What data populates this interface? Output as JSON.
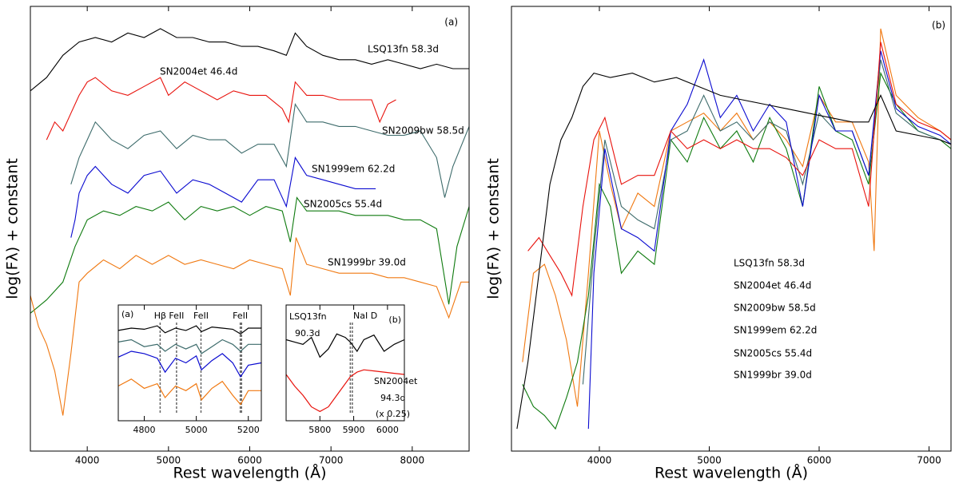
{
  "chart_data": [
    {
      "type": "line",
      "panel_label": "(a)",
      "xlabel": "Rest wavelength (Å)",
      "ylabel": "log(Fλ) + constant",
      "xlim": [
        3300,
        8700
      ],
      "xticks": [
        4000,
        5000,
        6000,
        7000,
        8000
      ],
      "ylim": [
        0,
        100
      ],
      "series": [
        {
          "name": "LSQ13fn 58.3d",
          "color": "#000000",
          "x": [
            3300,
            3500,
            3700,
            3900,
            4100,
            4300,
            4500,
            4700,
            4900,
            5100,
            5300,
            5500,
            5700,
            5900,
            6100,
            6300,
            6450,
            6560,
            6700,
            6900,
            7100,
            7300,
            7500,
            7700,
            7900,
            8100,
            8300,
            8500,
            8700
          ],
          "values": [
            81,
            84,
            89,
            92,
            93,
            92,
            94,
            93,
            95,
            93,
            93,
            92,
            92,
            91,
            91,
            90,
            89,
            94,
            91,
            89,
            88,
            88,
            87,
            88,
            87,
            86,
            87,
            86,
            86
          ]
        },
        {
          "name": "SN2004et 46.4d",
          "color": "#e8120c",
          "x": [
            3500,
            3600,
            3700,
            3800,
            3900,
            4000,
            4100,
            4300,
            4500,
            4700,
            4900,
            5000,
            5200,
            5400,
            5600,
            5800,
            6000,
            6200,
            6400,
            6480,
            6560,
            6700,
            6900,
            7100,
            7300,
            7500,
            7600,
            7700,
            7800
          ],
          "values": [
            70,
            74,
            72,
            76,
            80,
            83,
            84,
            81,
            80,
            82,
            84,
            80,
            83,
            81,
            79,
            81,
            80,
            80,
            77,
            74,
            83,
            80,
            80,
            79,
            79,
            79,
            74,
            78,
            79
          ]
        },
        {
          "name": "SN2009bw 58.5d",
          "color": "#3d6b6b",
          "x": [
            3800,
            3900,
            4000,
            4100,
            4300,
            4500,
            4700,
            4900,
            5100,
            5300,
            5500,
            5700,
            5900,
            6100,
            6300,
            6450,
            6560,
            6700,
            6900,
            7100,
            7300,
            7500,
            7700,
            7900,
            8100,
            8300,
            8400,
            8500,
            8700
          ],
          "values": [
            60,
            66,
            70,
            74,
            70,
            68,
            71,
            72,
            68,
            71,
            70,
            70,
            67,
            69,
            69,
            64,
            78,
            74,
            74,
            73,
            73,
            72,
            71,
            71,
            72,
            66,
            57,
            64,
            73
          ]
        },
        {
          "name": "SN1999em 62.2d",
          "color": "#0a0ad0",
          "x": [
            3800,
            3850,
            3900,
            4000,
            4100,
            4300,
            4500,
            4700,
            4900,
            5100,
            5300,
            5500,
            5700,
            5900,
            6100,
            6300,
            6450,
            6560,
            6700,
            6900,
            7100,
            7300,
            7550
          ],
          "values": [
            48,
            52,
            58,
            62,
            64,
            60,
            58,
            62,
            63,
            58,
            61,
            60,
            58,
            56,
            61,
            61,
            55,
            66,
            62,
            61,
            60,
            59,
            59
          ]
        },
        {
          "name": "SN2005cs 55.4d",
          "color": "#0e7a0e",
          "x": [
            3300,
            3500,
            3700,
            3850,
            4000,
            4200,
            4400,
            4600,
            4800,
            5000,
            5200,
            5400,
            5600,
            5800,
            6000,
            6200,
            6400,
            6500,
            6580,
            6700,
            6900,
            7100,
            7300,
            7500,
            7700,
            7900,
            8100,
            8300,
            8450,
            8550,
            8700
          ],
          "values": [
            31,
            34,
            38,
            46,
            52,
            54,
            53,
            55,
            54,
            56,
            52,
            55,
            54,
            55,
            53,
            55,
            54,
            47,
            57,
            54,
            54,
            54,
            53,
            53,
            53,
            52,
            52,
            50,
            33,
            46,
            55
          ]
        },
        {
          "name": "SN1999br 39.0d",
          "color": "#f07810",
          "x": [
            3300,
            3400,
            3500,
            3600,
            3700,
            3800,
            3900,
            4000,
            4200,
            4400,
            4600,
            4800,
            5000,
            5200,
            5400,
            5600,
            5800,
            6000,
            6200,
            6400,
            6500,
            6570,
            6700,
            6900,
            7100,
            7300,
            7500,
            7700,
            7900,
            8100,
            8300,
            8450,
            8600,
            8700
          ],
          "values": [
            35,
            28,
            24,
            18,
            8,
            22,
            38,
            40,
            43,
            41,
            44,
            42,
            44,
            42,
            43,
            42,
            41,
            43,
            42,
            41,
            35,
            48,
            42,
            41,
            40,
            40,
            40,
            39,
            39,
            38,
            37,
            30,
            38,
            38
          ]
        }
      ]
    },
    {
      "type": "line",
      "panel_label": "(a)",
      "xlim": [
        4700,
        5250
      ],
      "xticks": [
        4800,
        5000,
        5200
      ],
      "ylim": [
        0,
        100
      ],
      "vlines": [
        4861,
        4924,
        5018,
        5169,
        5174
      ],
      "annotations": [
        {
          "text": "Hβ",
          "x": 4861
        },
        {
          "text": "FeII",
          "x": 4924
        },
        {
          "text": "FeII",
          "x": 5018
        },
        {
          "text": "FeII",
          "x": 5169
        }
      ],
      "series": [
        {
          "color": "#000000",
          "x": [
            4700,
            4750,
            4800,
            4850,
            4880,
            4920,
            4960,
            5000,
            5020,
            5060,
            5100,
            5140,
            5170,
            5200,
            5250
          ],
          "values": [
            78,
            80,
            79,
            82,
            76,
            80,
            78,
            82,
            77,
            81,
            80,
            79,
            75,
            80,
            80
          ]
        },
        {
          "color": "#3d6b6b",
          "x": [
            4700,
            4750,
            4800,
            4850,
            4880,
            4920,
            4960,
            5000,
            5020,
            5060,
            5100,
            5140,
            5170,
            5200,
            5250
          ],
          "values": [
            68,
            70,
            64,
            66,
            60,
            66,
            62,
            66,
            58,
            64,
            70,
            66,
            60,
            66,
            66
          ]
        },
        {
          "color": "#0a0ad0",
          "x": [
            4700,
            4750,
            4800,
            4850,
            4880,
            4920,
            4960,
            5000,
            5020,
            5060,
            5100,
            5140,
            5170,
            5200,
            5250
          ],
          "values": [
            55,
            60,
            58,
            54,
            42,
            54,
            50,
            56,
            44,
            52,
            58,
            50,
            38,
            48,
            50
          ]
        },
        {
          "color": "#f07810",
          "x": [
            4700,
            4750,
            4800,
            4850,
            4880,
            4920,
            4960,
            5000,
            5020,
            5060,
            5100,
            5140,
            5170,
            5200,
            5250
          ],
          "values": [
            30,
            36,
            28,
            32,
            20,
            30,
            26,
            32,
            18,
            28,
            34,
            22,
            14,
            26,
            26
          ]
        }
      ]
    },
    {
      "type": "line",
      "panel_label": "(b)",
      "xlim": [
        5700,
        6050
      ],
      "xticks": [
        5800,
        5900,
        6000
      ],
      "ylim": [
        0,
        100
      ],
      "vlines": [
        5890,
        5896
      ],
      "annotations": [
        {
          "text": "90.3d",
          "color": "#000000"
        },
        {
          "text": "NaI D",
          "color": "#000000"
        },
        {
          "text": "94.3d",
          "color": "#e8120c"
        },
        {
          "text": "(x 0.25)",
          "color": "#e8120c"
        }
      ],
      "series": [
        {
          "name": "LSQ13fn",
          "color": "#000000",
          "x": [
            5700,
            5725,
            5750,
            5775,
            5800,
            5825,
            5850,
            5875,
            5890,
            5910,
            5930,
            5960,
            5990,
            6020,
            6050
          ],
          "values": [
            70,
            68,
            66,
            72,
            55,
            62,
            75,
            72,
            68,
            60,
            70,
            74,
            60,
            66,
            70
          ]
        },
        {
          "name": "SN2004et",
          "color": "#e8120c",
          "x": [
            5700,
            5725,
            5750,
            5775,
            5800,
            5825,
            5850,
            5875,
            5890,
            5910,
            5930,
            5960,
            5990,
            6020,
            6050
          ],
          "values": [
            40,
            30,
            22,
            12,
            8,
            12,
            22,
            32,
            38,
            42,
            44,
            43,
            42,
            41,
            40
          ]
        }
      ]
    },
    {
      "type": "line",
      "panel_label": "(b)",
      "xlabel": "Rest wavelength (Å)",
      "ylabel": "log(Fλ) + constant",
      "xlim": [
        3200,
        7200
      ],
      "xticks": [
        4000,
        5000,
        6000,
        7000
      ],
      "ylim": [
        0,
        100
      ],
      "series": [
        {
          "name": "SN1999br 39.0d",
          "color": "#f07810",
          "x": [
            3300,
            3400,
            3500,
            3600,
            3700,
            3800,
            3900,
            4000,
            4100,
            4200,
            4350,
            4500,
            4650,
            4800,
            4950,
            5100,
            5250,
            5400,
            5550,
            5700,
            5850,
            6000,
            6150,
            6300,
            6450,
            6500,
            6560,
            6700,
            6900,
            7100,
            7200
          ],
          "values": [
            20,
            40,
            42,
            35,
            25,
            10,
            40,
            72,
            60,
            50,
            58,
            55,
            72,
            74,
            76,
            72,
            76,
            70,
            74,
            70,
            64,
            80,
            74,
            74,
            65,
            45,
            95,
            80,
            75,
            72,
            70
          ]
        },
        {
          "name": "SN2005cs 55.4d",
          "color": "#0e7a0e",
          "x": [
            3300,
            3400,
            3500,
            3600,
            3700,
            3800,
            3900,
            4000,
            4100,
            4200,
            4350,
            4500,
            4650,
            4800,
            4950,
            5100,
            5250,
            5400,
            5550,
            5700,
            5850,
            6000,
            6150,
            6300,
            6450,
            6560,
            6700,
            6900,
            7100,
            7200
          ],
          "values": [
            15,
            10,
            8,
            5,
            12,
            20,
            35,
            60,
            55,
            40,
            45,
            42,
            70,
            65,
            75,
            68,
            72,
            65,
            75,
            68,
            55,
            82,
            72,
            70,
            60,
            85,
            78,
            72,
            70,
            68
          ]
        },
        {
          "name": "SN2009bw 58.5d",
          "color": "#3d6b6b",
          "x": [
            3850,
            3950,
            4050,
            4200,
            4350,
            4500,
            4650,
            4800,
            4950,
            5100,
            5250,
            5400,
            5550,
            5700,
            5850,
            6000,
            6150,
            6300,
            6450,
            6560,
            6700,
            6900,
            7100,
            7200
          ],
          "values": [
            15,
            45,
            70,
            55,
            52,
            50,
            70,
            72,
            80,
            72,
            74,
            70,
            74,
            72,
            60,
            76,
            72,
            72,
            62,
            88,
            76,
            72,
            70,
            69
          ]
        },
        {
          "name": "SN1999em 62.2d",
          "color": "#0a0ad0",
          "x": [
            3900,
            3950,
            4050,
            4200,
            4350,
            4500,
            4650,
            4800,
            4950,
            5100,
            5250,
            5400,
            5550,
            5700,
            5850,
            6000,
            6150,
            6300,
            6450,
            6560,
            6700,
            6900,
            7100,
            7200
          ],
          "values": [
            5,
            40,
            68,
            50,
            48,
            45,
            72,
            78,
            88,
            75,
            80,
            72,
            78,
            74,
            55,
            80,
            72,
            72,
            62,
            90,
            77,
            73,
            71,
            69
          ]
        },
        {
          "name": "SN2004et 46.4d",
          "color": "#e8120c",
          "x": [
            3350,
            3450,
            3550,
            3650,
            3750,
            3850,
            3950,
            4050,
            4200,
            4350,
            4500,
            4650,
            4800,
            4950,
            5100,
            5250,
            5400,
            5550,
            5700,
            5850,
            6000,
            6150,
            6300,
            6450,
            6560,
            6700,
            6900,
            7100,
            7200
          ],
          "values": [
            45,
            48,
            44,
            40,
            35,
            55,
            70,
            75,
            60,
            62,
            62,
            72,
            68,
            70,
            68,
            70,
            68,
            68,
            66,
            62,
            70,
            68,
            68,
            55,
            92,
            78,
            74,
            72,
            70
          ]
        },
        {
          "name": "LSQ13fn 58.3d",
          "color": "#000000",
          "x": [
            3250,
            3350,
            3450,
            3550,
            3650,
            3750,
            3850,
            3950,
            4100,
            4300,
            4500,
            4700,
            4900,
            5100,
            5300,
            5500,
            5700,
            5900,
            6100,
            6300,
            6450,
            6560,
            6700,
            6900,
            7100,
            7200
          ],
          "values": [
            5,
            20,
            40,
            60,
            70,
            75,
            82,
            85,
            84,
            85,
            83,
            84,
            82,
            80,
            79,
            78,
            77,
            76,
            75,
            74,
            74,
            80,
            72,
            71,
            70,
            69
          ]
        }
      ]
    }
  ]
}
